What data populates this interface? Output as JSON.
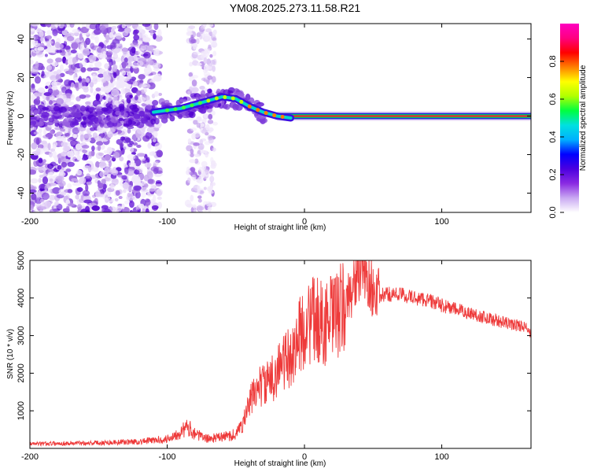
{
  "title": "YM08.2025.273.11.58.R21",
  "colorbar": {
    "label": "Normalized spectral amplitude",
    "ticks": [
      0.0,
      0.2,
      0.4,
      0.6,
      0.8
    ],
    "range": [
      0,
      1
    ],
    "stops": [
      "#ffffff",
      "#c9a8f2",
      "#8a2be2",
      "#4b00e0",
      "#0000ff",
      "#00b0ff",
      "#00e0e0",
      "#00ff40",
      "#b0ff00",
      "#ffff00",
      "#ff8000",
      "#ff0000",
      "#ff0080",
      "#ff00c0"
    ]
  },
  "chart_data": [
    {
      "id": "spectrogram",
      "type": "heatmap",
      "xlabel": "Height of straight line (km)",
      "ylabel": "Frequency (Hz)",
      "xlim": [
        -200,
        165
      ],
      "ylim": [
        -50,
        48
      ],
      "xticks": [
        -200,
        -100,
        0,
        100
      ],
      "yticks": [
        -40,
        -20,
        0,
        20,
        40
      ],
      "ridge": {
        "description": "dominant frequency track (km, Hz)",
        "x": [
          -110,
          -100,
          -90,
          -80,
          -70,
          -60,
          -50,
          -40,
          -30,
          -20,
          -10,
          0,
          20,
          60,
          165
        ],
        "y": [
          2,
          3,
          4,
          6,
          8,
          10,
          9,
          5,
          2,
          0,
          -1,
          0,
          0,
          0,
          0
        ]
      },
      "noise_region_km": [
        -200,
        -105
      ],
      "noise_patch_km": [
        -85,
        -65
      ]
    },
    {
      "id": "snr",
      "type": "line",
      "xlabel": "Height of straight line (km)",
      "ylabel": "SNR (10 * v/v)",
      "xlim": [
        -200,
        165
      ],
      "ylim": [
        0,
        5000
      ],
      "xticks": [
        -200,
        -100,
        0,
        100
      ],
      "yticks": [
        1000,
        2000,
        3000,
        4000,
        5000
      ],
      "color": "#ee3a3a",
      "series": [
        {
          "name": "SNR",
          "x": [
            -200,
            -150,
            -120,
            -100,
            -95,
            -90,
            -85,
            -80,
            -75,
            -70,
            -60,
            -50,
            -45,
            -40,
            -35,
            -30,
            -25,
            -20,
            -15,
            -10,
            -5,
            0,
            5,
            10,
            15,
            20,
            25,
            30,
            35,
            40,
            45,
            50,
            55,
            60,
            70,
            80,
            90,
            100,
            110,
            120,
            130,
            140,
            150,
            160,
            165
          ],
          "y": [
            120,
            150,
            180,
            250,
            350,
            450,
            550,
            420,
            300,
            260,
            300,
            380,
            650,
            1200,
            1600,
            1700,
            1750,
            2100,
            2300,
            2400,
            2900,
            3200,
            3400,
            3400,
            3300,
            3450,
            3600,
            3800,
            4300,
            4700,
            4600,
            4200,
            4050,
            4100,
            4100,
            4000,
            3950,
            3800,
            3700,
            3600,
            3500,
            3400,
            3300,
            3250,
            3050
          ]
        }
      ]
    }
  ]
}
